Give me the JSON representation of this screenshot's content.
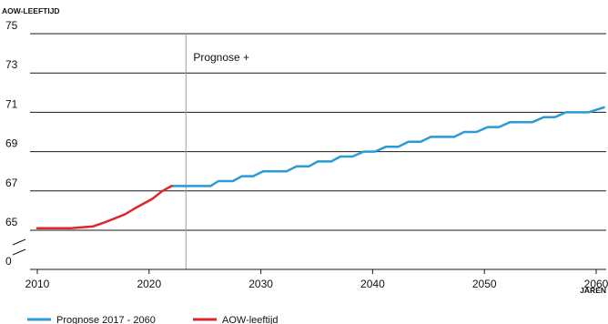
{
  "chart_data": {
    "type": "line",
    "ylabel": "AOW-LEEFTIJD",
    "xlabel": "JAREN",
    "xlim": [
      2010,
      2061
    ],
    "y_ticks": [
      {
        "value": 75,
        "label": "75"
      },
      {
        "value": 73,
        "label": "73"
      },
      {
        "value": 71,
        "label": "71"
      },
      {
        "value": 69,
        "label": "69"
      },
      {
        "value": 67,
        "label": "67"
      },
      {
        "value": 65,
        "label": "65"
      },
      {
        "value": 0,
        "label": "0"
      }
    ],
    "x_ticks": [
      "2010",
      "2020",
      "2030",
      "2040",
      "2050",
      "2060"
    ],
    "axis_break": true,
    "grid": "horizontal",
    "annotation": {
      "x": 2023.3,
      "label": "Prognose +"
    },
    "legend_position": "bottom-left",
    "series": [
      {
        "name": "Prognose 2017 - 2060",
        "color": "#2a9bd6",
        "points": [
          [
            2022,
            67.25
          ],
          [
            2024,
            67.25
          ],
          [
            2025.5,
            67.25
          ],
          [
            2026.2,
            67.5
          ],
          [
            2027.5,
            67.5
          ],
          [
            2028.3,
            67.75
          ],
          [
            2029.3,
            67.75
          ],
          [
            2030.2,
            68
          ],
          [
            2032.3,
            68
          ],
          [
            2033.2,
            68.25
          ],
          [
            2034.3,
            68.25
          ],
          [
            2035.1,
            68.5
          ],
          [
            2036.3,
            68.5
          ],
          [
            2037.1,
            68.75
          ],
          [
            2038.2,
            68.75
          ],
          [
            2039.2,
            69
          ],
          [
            2040.2,
            69
          ],
          [
            2041.2,
            69.25
          ],
          [
            2042.3,
            69.25
          ],
          [
            2043.2,
            69.5
          ],
          [
            2044.3,
            69.5
          ],
          [
            2045.2,
            69.75
          ],
          [
            2047.3,
            69.75
          ],
          [
            2048.2,
            70
          ],
          [
            2049.3,
            70
          ],
          [
            2050.3,
            70.25
          ],
          [
            2051.3,
            70.25
          ],
          [
            2052.3,
            70.5
          ],
          [
            2054.3,
            70.5
          ],
          [
            2055.3,
            70.75
          ],
          [
            2056.3,
            70.75
          ],
          [
            2057.3,
            71
          ],
          [
            2059.3,
            71
          ],
          [
            2060.7,
            71.25
          ]
        ]
      },
      {
        "name": "AOW-leeftijd",
        "color": "#e0262b",
        "points": [
          [
            2010,
            65.1
          ],
          [
            2013,
            65.1
          ],
          [
            2015,
            65.2
          ],
          [
            2016,
            65.4
          ],
          [
            2017.8,
            65.8
          ],
          [
            2019,
            66.2
          ],
          [
            2020.3,
            66.6
          ],
          [
            2021.2,
            67
          ],
          [
            2022,
            67.25
          ]
        ]
      }
    ]
  }
}
